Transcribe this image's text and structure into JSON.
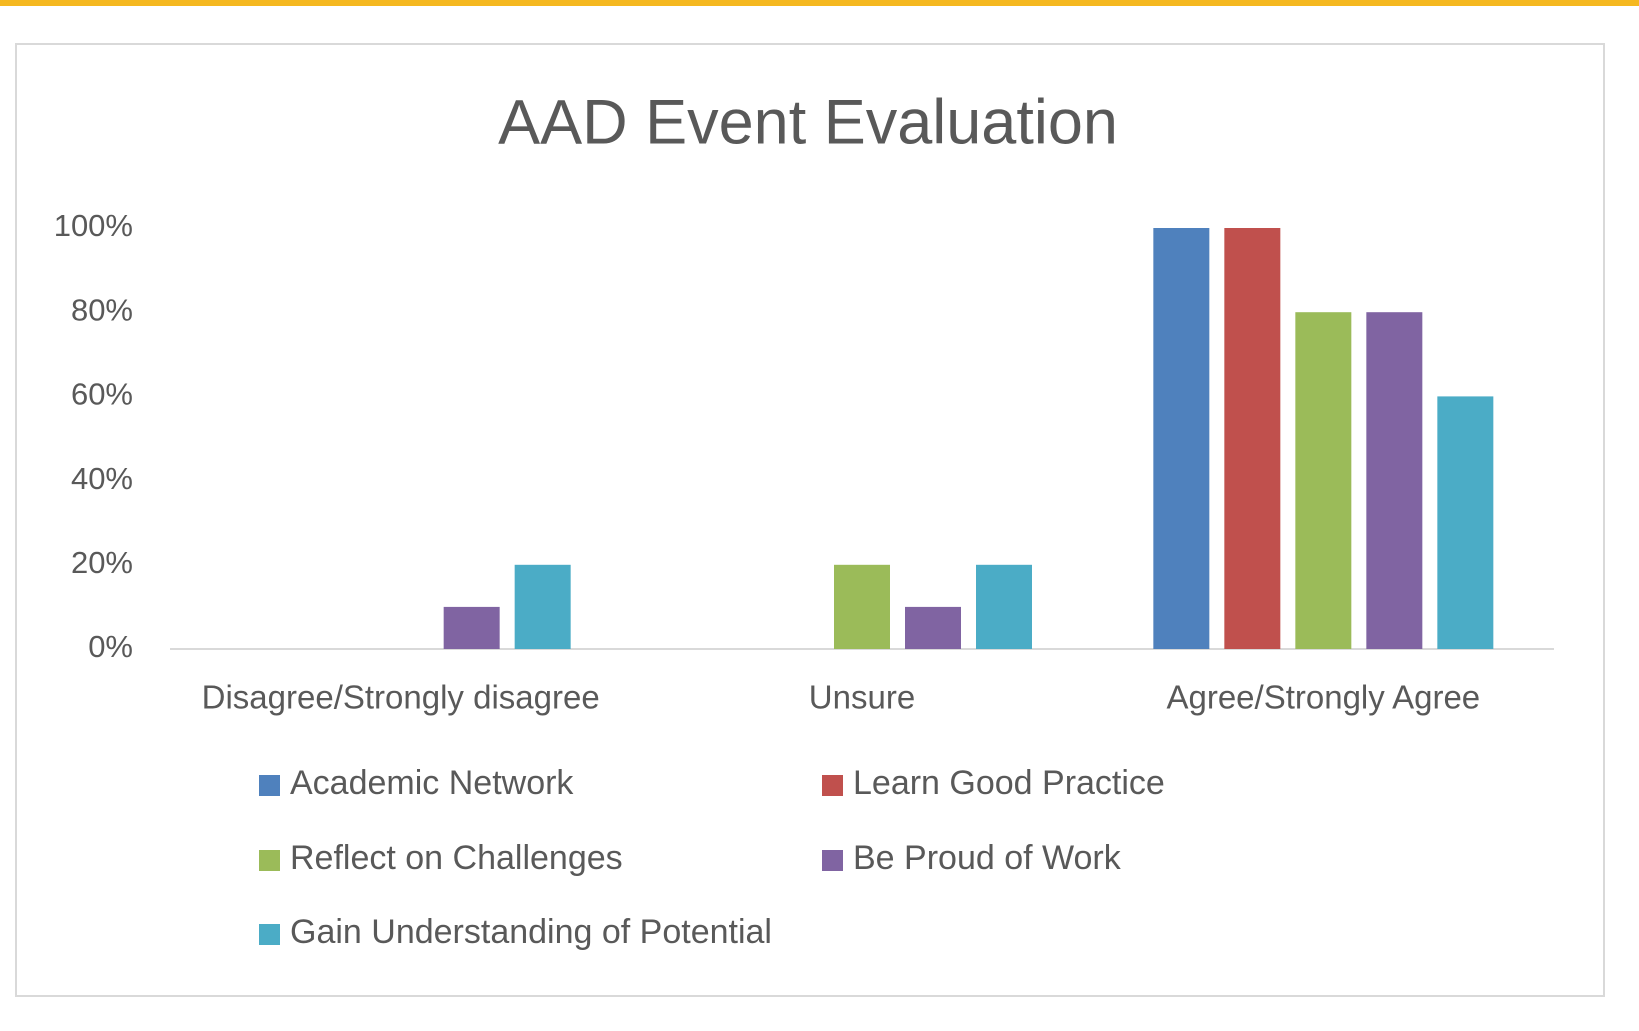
{
  "chart_data": {
    "type": "bar",
    "title": "AAD Event Evaluation",
    "categories": [
      "Disagree/Strongly disagree",
      "Unsure",
      "Agree/Strongly Agree"
    ],
    "series": [
      {
        "name": "Academic Network",
        "color": "#4f81bd",
        "values": [
          0,
          0,
          100
        ]
      },
      {
        "name": "Learn Good Practice",
        "color": "#c0504d",
        "values": [
          0,
          0,
          100
        ]
      },
      {
        "name": "Reflect on Challenges",
        "color": "#9bbb59",
        "values": [
          0,
          20,
          80
        ]
      },
      {
        "name": "Be Proud of Work",
        "color": "#8064a2",
        "values": [
          10,
          10,
          80
        ]
      },
      {
        "name": "Gain Understanding of Potential",
        "color": "#4bacc6",
        "values": [
          20,
          20,
          60
        ]
      }
    ],
    "ylim": [
      0,
      100
    ],
    "yticks": [
      {
        "value": 0,
        "label": "0%"
      },
      {
        "value": 20,
        "label": "20%"
      },
      {
        "value": 40,
        "label": "40%"
      },
      {
        "value": 60,
        "label": "60%"
      },
      {
        "value": 80,
        "label": "80%"
      },
      {
        "value": 100,
        "label": "100%"
      }
    ],
    "grid": false,
    "legend": "bottom"
  }
}
